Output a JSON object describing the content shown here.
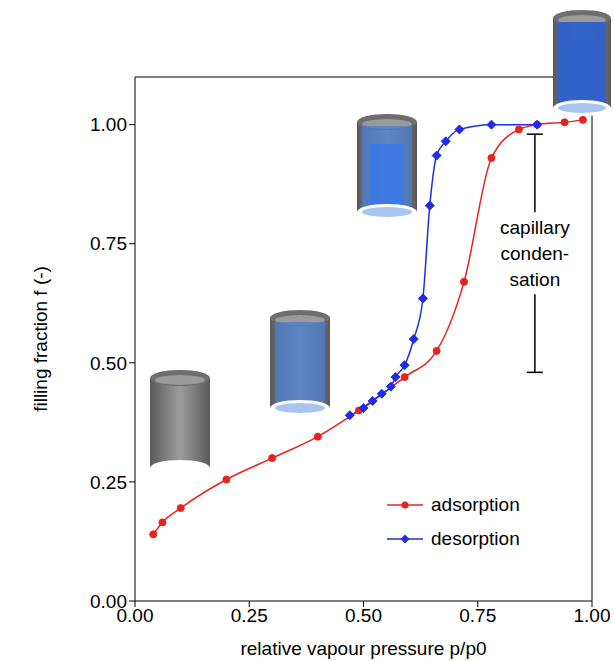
{
  "chart_data": {
    "type": "line",
    "x_label": "relative vapour pressure p/p0",
    "y_label": "filling fraction f (-)",
    "xlim": [
      0,
      1.0
    ],
    "ylim": [
      0,
      1.1
    ],
    "xticks": [
      {
        "value": 0,
        "label": "0.00"
      },
      {
        "value": 0.25,
        "label": "0.25"
      },
      {
        "value": 0.5,
        "label": "0.50"
      },
      {
        "value": 0.75,
        "label": "0.75"
      },
      {
        "value": 1.0,
        "label": "1.00"
      }
    ],
    "yticks": [
      {
        "value": 0,
        "label": "0.00"
      },
      {
        "value": 0.25,
        "label": "0.25"
      },
      {
        "value": 0.5,
        "label": "0.50"
      },
      {
        "value": 0.75,
        "label": "0.75"
      },
      {
        "value": 1.0,
        "label": "1.00"
      }
    ],
    "legend": "lower right",
    "series": [
      {
        "name": "adsorption",
        "color": "#e8231c",
        "marker": "circle",
        "line_style": "solid",
        "x": [
          0.04,
          0.06,
          0.1,
          0.2,
          0.3,
          0.4,
          0.49,
          0.59,
          0.66,
          0.72,
          0.78,
          0.84,
          0.88,
          0.94,
          0.98
        ],
        "values": [
          0.14,
          0.165,
          0.195,
          0.255,
          0.3,
          0.345,
          0.4,
          0.47,
          0.525,
          0.67,
          0.93,
          0.99,
          1.0,
          1.005,
          1.01
        ]
      },
      {
        "name": "desorption",
        "color": "#1f2de8",
        "marker": "diamond",
        "line_style": "solid",
        "x": [
          0.47,
          0.5,
          0.52,
          0.54,
          0.56,
          0.57,
          0.59,
          0.61,
          0.63,
          0.645,
          0.66,
          0.68,
          0.71,
          0.78,
          0.88
        ],
        "values": [
          0.39,
          0.405,
          0.42,
          0.435,
          0.45,
          0.47,
          0.495,
          0.55,
          0.635,
          0.83,
          0.935,
          0.965,
          0.99,
          1.0,
          1.0
        ]
      }
    ],
    "annotations": [
      {
        "text": "capillary conden- sation",
        "x": 0.875,
        "y": [
          0.48,
          0.98
        ]
      }
    ]
  }
}
